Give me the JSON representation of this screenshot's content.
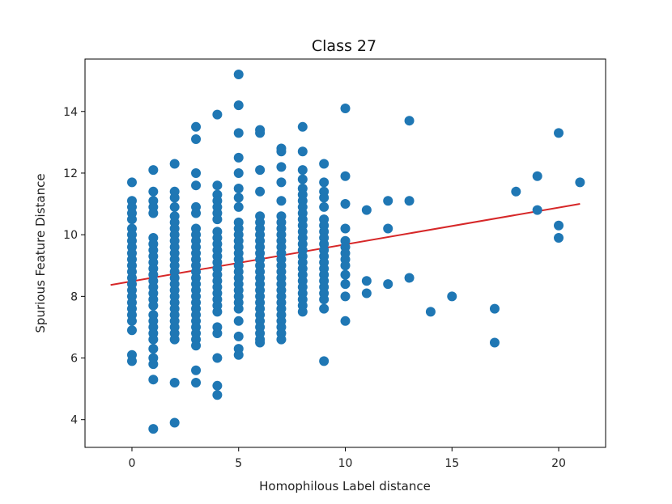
{
  "chart_data": {
    "type": "scatter",
    "title": "Class 27",
    "xlabel": "Homophilous Label distance",
    "ylabel": "Spurious Feature Distance",
    "xlim": [
      -2.2,
      22.2
    ],
    "ylim": [
      3.1,
      15.7
    ],
    "xticks": [
      0,
      5,
      10,
      15,
      20
    ],
    "yticks": [
      4,
      6,
      8,
      10,
      12,
      14
    ],
    "xtick_labels": [
      "0",
      "5",
      "10",
      "15",
      "20"
    ],
    "ytick_labels": [
      "4",
      "6",
      "8",
      "10",
      "12",
      "14"
    ],
    "grid": false,
    "point_color": "#1f77b4",
    "line_color": "#d62728",
    "trend_line": {
      "x": [
        -1,
        21
      ],
      "y": [
        8.37,
        11.0
      ]
    },
    "points": [
      [
        0,
        11.7
      ],
      [
        0,
        11.1
      ],
      [
        0,
        10.9
      ],
      [
        0,
        10.7
      ],
      [
        0,
        10.5
      ],
      [
        0,
        10.2
      ],
      [
        0,
        10.0
      ],
      [
        0,
        9.8
      ],
      [
        0,
        9.6
      ],
      [
        0,
        9.4
      ],
      [
        0,
        9.2
      ],
      [
        0,
        9.0
      ],
      [
        0,
        8.8
      ],
      [
        0,
        8.6
      ],
      [
        0,
        8.4
      ],
      [
        0,
        8.2
      ],
      [
        0,
        8.0
      ],
      [
        0,
        7.8
      ],
      [
        0,
        7.6
      ],
      [
        0,
        7.4
      ],
      [
        0,
        7.2
      ],
      [
        0,
        6.9
      ],
      [
        0,
        6.1
      ],
      [
        0,
        5.9
      ],
      [
        1,
        12.1
      ],
      [
        1,
        11.4
      ],
      [
        1,
        11.1
      ],
      [
        1,
        10.9
      ],
      [
        1,
        10.7
      ],
      [
        1,
        9.9
      ],
      [
        1,
        9.7
      ],
      [
        1,
        9.5
      ],
      [
        1,
        9.3
      ],
      [
        1,
        9.1
      ],
      [
        1,
        8.9
      ],
      [
        1,
        8.7
      ],
      [
        1,
        8.5
      ],
      [
        1,
        8.3
      ],
      [
        1,
        8.1
      ],
      [
        1,
        7.9
      ],
      [
        1,
        7.7
      ],
      [
        1,
        7.4
      ],
      [
        1,
        7.2
      ],
      [
        1,
        7.0
      ],
      [
        1,
        6.8
      ],
      [
        1,
        6.6
      ],
      [
        1,
        6.3
      ],
      [
        1,
        6.0
      ],
      [
        1,
        5.8
      ],
      [
        1,
        5.3
      ],
      [
        1,
        3.7
      ],
      [
        2,
        12.3
      ],
      [
        2,
        11.4
      ],
      [
        2,
        11.2
      ],
      [
        2,
        10.9
      ],
      [
        2,
        10.6
      ],
      [
        2,
        10.4
      ],
      [
        2,
        10.2
      ],
      [
        2,
        10.0
      ],
      [
        2,
        9.8
      ],
      [
        2,
        9.6
      ],
      [
        2,
        9.4
      ],
      [
        2,
        9.2
      ],
      [
        2,
        9.0
      ],
      [
        2,
        8.8
      ],
      [
        2,
        8.6
      ],
      [
        2,
        8.4
      ],
      [
        2,
        8.2
      ],
      [
        2,
        8.0
      ],
      [
        2,
        7.8
      ],
      [
        2,
        7.6
      ],
      [
        2,
        7.4
      ],
      [
        2,
        7.2
      ],
      [
        2,
        7.0
      ],
      [
        2,
        6.8
      ],
      [
        2,
        6.6
      ],
      [
        2,
        5.2
      ],
      [
        2,
        3.9
      ],
      [
        3,
        13.5
      ],
      [
        3,
        13.1
      ],
      [
        3,
        12.0
      ],
      [
        3,
        11.6
      ],
      [
        3,
        10.9
      ],
      [
        3,
        10.7
      ],
      [
        3,
        10.2
      ],
      [
        3,
        10.0
      ],
      [
        3,
        9.8
      ],
      [
        3,
        9.6
      ],
      [
        3,
        9.4
      ],
      [
        3,
        9.2
      ],
      [
        3,
        9.0
      ],
      [
        3,
        8.8
      ],
      [
        3,
        8.6
      ],
      [
        3,
        8.4
      ],
      [
        3,
        8.2
      ],
      [
        3,
        8.0
      ],
      [
        3,
        7.8
      ],
      [
        3,
        7.6
      ],
      [
        3,
        7.4
      ],
      [
        3,
        7.2
      ],
      [
        3,
        7.0
      ],
      [
        3,
        6.8
      ],
      [
        3,
        6.6
      ],
      [
        3,
        6.4
      ],
      [
        3,
        5.6
      ],
      [
        3,
        5.2
      ],
      [
        4,
        13.9
      ],
      [
        4,
        11.6
      ],
      [
        4,
        11.3
      ],
      [
        4,
        11.1
      ],
      [
        4,
        10.9
      ],
      [
        4,
        10.7
      ],
      [
        4,
        10.5
      ],
      [
        4,
        10.1
      ],
      [
        4,
        9.9
      ],
      [
        4,
        9.7
      ],
      [
        4,
        9.5
      ],
      [
        4,
        9.3
      ],
      [
        4,
        9.1
      ],
      [
        4,
        8.9
      ],
      [
        4,
        8.7
      ],
      [
        4,
        8.5
      ],
      [
        4,
        8.3
      ],
      [
        4,
        8.1
      ],
      [
        4,
        7.9
      ],
      [
        4,
        7.7
      ],
      [
        4,
        7.5
      ],
      [
        4,
        7.0
      ],
      [
        4,
        6.8
      ],
      [
        4,
        6.0
      ],
      [
        4,
        5.1
      ],
      [
        4,
        4.8
      ],
      [
        5,
        15.2
      ],
      [
        5,
        14.2
      ],
      [
        5,
        13.3
      ],
      [
        5,
        12.5
      ],
      [
        5,
        12.0
      ],
      [
        5,
        11.5
      ],
      [
        5,
        11.2
      ],
      [
        5,
        10.9
      ],
      [
        5,
        10.4
      ],
      [
        5,
        10.2
      ],
      [
        5,
        10.0
      ],
      [
        5,
        9.8
      ],
      [
        5,
        9.6
      ],
      [
        5,
        9.4
      ],
      [
        5,
        9.2
      ],
      [
        5,
        9.0
      ],
      [
        5,
        8.8
      ],
      [
        5,
        8.6
      ],
      [
        5,
        8.4
      ],
      [
        5,
        8.2
      ],
      [
        5,
        8.0
      ],
      [
        5,
        7.8
      ],
      [
        5,
        7.6
      ],
      [
        5,
        7.2
      ],
      [
        5,
        6.7
      ],
      [
        5,
        6.3
      ],
      [
        5,
        6.1
      ],
      [
        6,
        13.4
      ],
      [
        6,
        13.3
      ],
      [
        6,
        12.1
      ],
      [
        6,
        11.4
      ],
      [
        6,
        10.6
      ],
      [
        6,
        10.4
      ],
      [
        6,
        10.2
      ],
      [
        6,
        10.0
      ],
      [
        6,
        9.8
      ],
      [
        6,
        9.6
      ],
      [
        6,
        9.4
      ],
      [
        6,
        9.2
      ],
      [
        6,
        9.0
      ],
      [
        6,
        8.8
      ],
      [
        6,
        8.6
      ],
      [
        6,
        8.4
      ],
      [
        6,
        8.2
      ],
      [
        6,
        8.0
      ],
      [
        6,
        7.8
      ],
      [
        6,
        7.6
      ],
      [
        6,
        7.4
      ],
      [
        6,
        7.2
      ],
      [
        6,
        7.0
      ],
      [
        6,
        6.8
      ],
      [
        6,
        6.6
      ],
      [
        6,
        6.5
      ],
      [
        7,
        12.8
      ],
      [
        7,
        12.7
      ],
      [
        7,
        12.2
      ],
      [
        7,
        11.7
      ],
      [
        7,
        11.1
      ],
      [
        7,
        10.6
      ],
      [
        7,
        10.4
      ],
      [
        7,
        10.2
      ],
      [
        7,
        10.0
      ],
      [
        7,
        9.8
      ],
      [
        7,
        9.6
      ],
      [
        7,
        9.4
      ],
      [
        7,
        9.2
      ],
      [
        7,
        9.0
      ],
      [
        7,
        8.8
      ],
      [
        7,
        8.6
      ],
      [
        7,
        8.4
      ],
      [
        7,
        8.2
      ],
      [
        7,
        8.0
      ],
      [
        7,
        7.8
      ],
      [
        7,
        7.6
      ],
      [
        7,
        7.4
      ],
      [
        7,
        7.2
      ],
      [
        7,
        7.0
      ],
      [
        7,
        6.8
      ],
      [
        7,
        6.6
      ],
      [
        8,
        13.5
      ],
      [
        8,
        12.7
      ],
      [
        8,
        12.1
      ],
      [
        8,
        11.8
      ],
      [
        8,
        11.5
      ],
      [
        8,
        11.3
      ],
      [
        8,
        11.1
      ],
      [
        8,
        10.9
      ],
      [
        8,
        10.7
      ],
      [
        8,
        10.5
      ],
      [
        8,
        10.3
      ],
      [
        8,
        10.1
      ],
      [
        8,
        9.9
      ],
      [
        8,
        9.7
      ],
      [
        8,
        9.5
      ],
      [
        8,
        9.3
      ],
      [
        8,
        9.1
      ],
      [
        8,
        8.9
      ],
      [
        8,
        8.7
      ],
      [
        8,
        8.5
      ],
      [
        8,
        8.3
      ],
      [
        8,
        8.1
      ],
      [
        8,
        7.9
      ],
      [
        8,
        7.7
      ],
      [
        8,
        7.5
      ],
      [
        9,
        12.3
      ],
      [
        9,
        11.7
      ],
      [
        9,
        11.4
      ],
      [
        9,
        11.2
      ],
      [
        9,
        10.9
      ],
      [
        9,
        10.5
      ],
      [
        9,
        10.3
      ],
      [
        9,
        10.1
      ],
      [
        9,
        9.9
      ],
      [
        9,
        9.7
      ],
      [
        9,
        9.5
      ],
      [
        9,
        9.3
      ],
      [
        9,
        9.1
      ],
      [
        9,
        8.9
      ],
      [
        9,
        8.7
      ],
      [
        9,
        8.5
      ],
      [
        9,
        8.3
      ],
      [
        9,
        8.1
      ],
      [
        9,
        7.9
      ],
      [
        9,
        7.6
      ],
      [
        9,
        5.9
      ],
      [
        10,
        14.1
      ],
      [
        10,
        11.9
      ],
      [
        10,
        11.0
      ],
      [
        10,
        10.2
      ],
      [
        10,
        9.8
      ],
      [
        10,
        9.6
      ],
      [
        10,
        9.4
      ],
      [
        10,
        9.2
      ],
      [
        10,
        9.0
      ],
      [
        10,
        8.7
      ],
      [
        10,
        8.4
      ],
      [
        10,
        8.0
      ],
      [
        10,
        7.2
      ],
      [
        11,
        10.8
      ],
      [
        11,
        8.5
      ],
      [
        11,
        8.1
      ],
      [
        12,
        11.1
      ],
      [
        12,
        10.2
      ],
      [
        12,
        8.4
      ],
      [
        13,
        13.7
      ],
      [
        13,
        11.1
      ],
      [
        13,
        8.6
      ],
      [
        14,
        7.5
      ],
      [
        15,
        8.0
      ],
      [
        17,
        7.6
      ],
      [
        17,
        6.5
      ],
      [
        18,
        11.4
      ],
      [
        19,
        11.9
      ],
      [
        19,
        10.8
      ],
      [
        20,
        13.3
      ],
      [
        20,
        10.3
      ],
      [
        20,
        9.9
      ],
      [
        21,
        11.7
      ]
    ]
  }
}
